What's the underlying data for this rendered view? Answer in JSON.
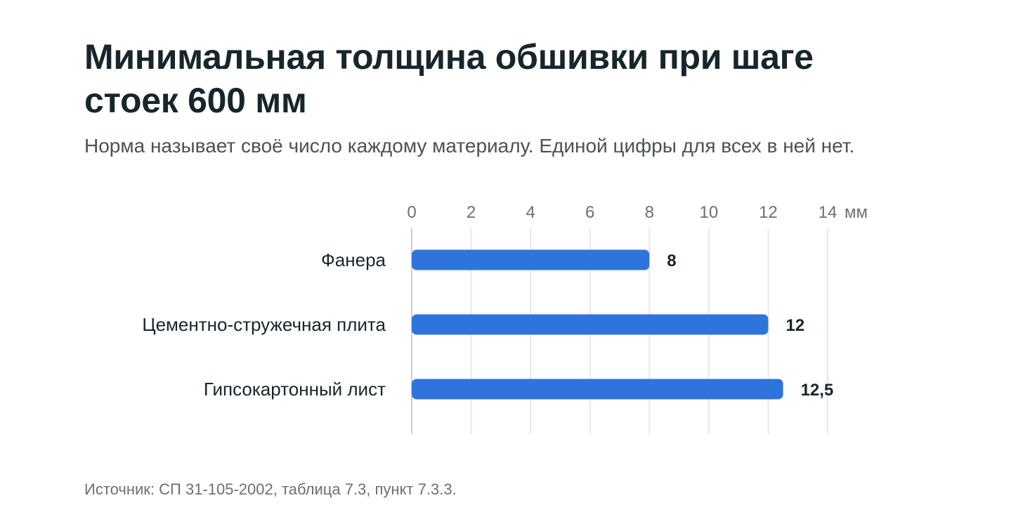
{
  "header": {
    "title": "Минимальная толщина обшивки при шаге стоек 600 мм",
    "subtitle": "Норма называет своё число каждому материалу. Единой цифры для всех в ней нет."
  },
  "footer": {
    "source": "Источник: СП 31-105-2002, таблица 7.3, пункт 7.3.3."
  },
  "colors": {
    "bar": "#2f74dd",
    "grid": "#e8e8e8",
    "axis": "#cccccc"
  },
  "chart_data": {
    "type": "bar",
    "orientation": "horizontal",
    "title": "Минимальная толщина обшивки при шаге стоек 600 мм",
    "subtitle": "Норма называет своё число каждому материалу. Единой цифры для всех в ней нет.",
    "categories": [
      "Фанера",
      "Цементно-стружечная плита",
      "Гипсокартонный лист"
    ],
    "values": [
      8,
      12,
      12.5
    ],
    "value_labels": [
      "8",
      "12",
      "12,5"
    ],
    "xticks": [
      0,
      2,
      4,
      6,
      8,
      10,
      12,
      14
    ],
    "xunit": "мм",
    "xlim": [
      0,
      14
    ],
    "axis_position": "top",
    "grid": true,
    "legend": false
  }
}
